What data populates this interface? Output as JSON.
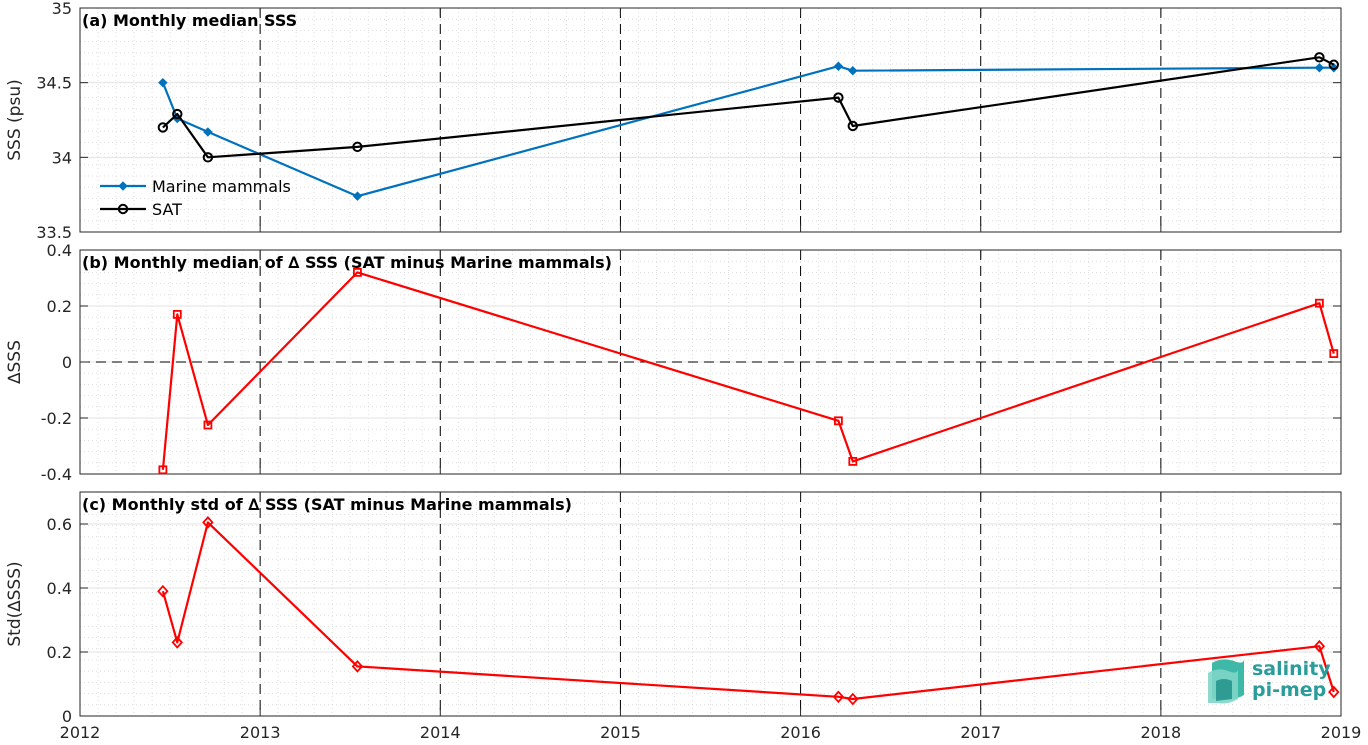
{
  "chart_data": [
    {
      "type": "line",
      "title": "(a) Monthly median SSS",
      "ylabel": "SSS (psu)",
      "xlim": [
        2012,
        2019
      ],
      "ylim": [
        33.5,
        35
      ],
      "yticks": [
        "33.5",
        "34",
        "34.5",
        "35"
      ],
      "grid": true,
      "legend_position": "lower-left",
      "series": [
        {
          "name": "Marine mammals",
          "color": "#0072bd",
          "marker": "filled-diamond",
          "x": [
            2012.46,
            2012.54,
            2012.71,
            2013.54,
            2016.21,
            2016.29,
            2018.88,
            2018.96
          ],
          "y": [
            34.5,
            34.26,
            34.17,
            33.74,
            34.61,
            34.58,
            34.6,
            34.6
          ]
        },
        {
          "name": "SAT",
          "color": "#000000",
          "marker": "open-circle",
          "x": [
            2012.46,
            2012.54,
            2012.71,
            2013.54,
            2016.21,
            2016.29,
            2018.88,
            2018.96
          ],
          "y": [
            34.2,
            34.29,
            34.0,
            34.07,
            34.4,
            34.21,
            34.67,
            34.62
          ]
        }
      ]
    },
    {
      "type": "line",
      "title": "(b) Monthly median of ∆ SSS (SAT minus Marine mammals)",
      "ylabel": "∆SSS",
      "xlim": [
        2012,
        2019
      ],
      "ylim": [
        -0.4,
        0.4
      ],
      "yticks": [
        "-0.4",
        "-0.2",
        "0",
        "0.2",
        "0.4"
      ],
      "zero_line": true,
      "grid": true,
      "series": [
        {
          "color": "#ff0000",
          "marker": "open-square",
          "x": [
            2012.46,
            2012.54,
            2012.71,
            2013.54,
            2016.21,
            2016.29,
            2018.88,
            2018.96
          ],
          "y": [
            -0.385,
            0.17,
            -0.225,
            0.32,
            -0.21,
            -0.355,
            0.21,
            0.03
          ]
        }
      ]
    },
    {
      "type": "line",
      "title": "(c) Monthly std of ∆ SSS (SAT minus Marine mammals)",
      "ylabel": "Std(∆SSS)",
      "xlim": [
        2012,
        2019
      ],
      "ylim": [
        0,
        0.7
      ],
      "yticks": [
        "0",
        "0.2",
        "0.4",
        "0.6"
      ],
      "xticks": [
        "2012",
        "2013",
        "2014",
        "2015",
        "2016",
        "2017",
        "2018",
        "2019"
      ],
      "grid": true,
      "series": [
        {
          "color": "#ff0000",
          "marker": "open-diamond",
          "x": [
            2012.46,
            2012.54,
            2012.71,
            2013.54,
            2016.21,
            2016.29,
            2018.88,
            2018.96
          ],
          "y": [
            0.39,
            0.23,
            0.605,
            0.155,
            0.06,
            0.053,
            0.218,
            0.075
          ]
        }
      ]
    }
  ],
  "logo": {
    "line1": "salinity",
    "line2": "pi-mep"
  }
}
